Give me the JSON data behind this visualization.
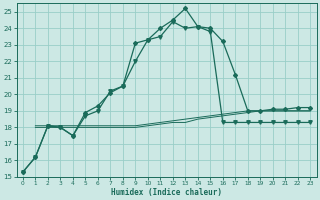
{
  "xlabel": "Humidex (Indice chaleur)",
  "xlim": [
    -0.5,
    23.5
  ],
  "ylim": [
    15,
    25.5
  ],
  "yticks": [
    15,
    16,
    17,
    18,
    19,
    20,
    21,
    22,
    23,
    24,
    25
  ],
  "xticks": [
    0,
    1,
    2,
    3,
    4,
    5,
    6,
    7,
    8,
    9,
    10,
    11,
    12,
    13,
    14,
    15,
    16,
    17,
    18,
    19,
    20,
    21,
    22,
    23
  ],
  "bg_color": "#cce8e4",
  "grid_color": "#99cec8",
  "line_color": "#1a6b5a",
  "curve1_x": [
    0,
    1,
    2,
    3,
    4,
    5,
    6,
    7,
    8,
    9,
    10,
    11,
    12,
    13,
    14,
    15,
    16,
    17,
    18,
    19,
    20,
    21,
    22,
    23
  ],
  "curve1_y": [
    15.3,
    16.2,
    18.1,
    18.0,
    17.5,
    18.9,
    19.3,
    20.1,
    20.5,
    23.1,
    23.3,
    24.0,
    24.5,
    25.2,
    24.1,
    24.0,
    23.2,
    21.2,
    19.0,
    19.0,
    19.1,
    19.1,
    19.2,
    19.2
  ],
  "curve2_x": [
    0,
    1,
    2,
    3,
    4,
    5,
    6,
    7,
    8,
    9,
    10,
    11,
    12,
    13,
    14,
    15,
    16,
    17,
    18,
    19,
    20,
    21,
    22,
    23
  ],
  "curve2_y": [
    15.3,
    16.2,
    18.1,
    18.0,
    17.5,
    18.7,
    19.0,
    20.2,
    20.5,
    22.0,
    23.3,
    23.5,
    24.4,
    24.0,
    24.1,
    23.8,
    18.3,
    18.3,
    18.3,
    18.3,
    18.3,
    18.3,
    18.3,
    18.3
  ],
  "curve3_x": [
    1,
    2,
    3,
    4,
    5,
    6,
    7,
    8,
    9,
    10,
    11,
    12,
    13,
    14,
    15,
    16,
    17,
    18,
    19,
    20,
    21,
    22,
    23
  ],
  "curve3_y": [
    18.1,
    18.1,
    18.1,
    18.1,
    18.1,
    18.1,
    18.1,
    18.1,
    18.1,
    18.2,
    18.3,
    18.4,
    18.5,
    18.6,
    18.7,
    18.8,
    18.9,
    19.0,
    19.0,
    19.0,
    19.0,
    19.0,
    19.0
  ],
  "curve4_x": [
    1,
    2,
    3,
    4,
    5,
    6,
    7,
    8,
    9,
    10,
    11,
    12,
    13,
    14,
    15,
    16,
    17,
    18,
    19,
    20,
    21,
    22,
    23
  ],
  "curve4_y": [
    18.0,
    18.0,
    18.0,
    18.0,
    18.0,
    18.0,
    18.0,
    18.0,
    18.0,
    18.1,
    18.2,
    18.3,
    18.3,
    18.5,
    18.6,
    18.7,
    18.8,
    18.9,
    19.0,
    19.0,
    19.0,
    19.0,
    19.0
  ]
}
